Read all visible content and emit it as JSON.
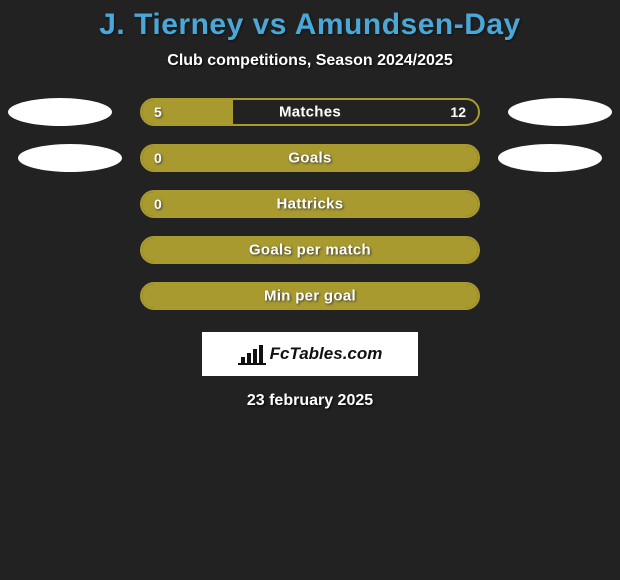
{
  "title": "J. Tierney vs Amundsen-Day",
  "subtitle": "Club competitions, Season 2024/2025",
  "date": "23 february 2025",
  "logo_text": "FcTables.com",
  "colors": {
    "background": "#222222",
    "title": "#4aa8d8",
    "text": "#ffffff",
    "bar_fill": "#a89a2f",
    "bar_border": "#a89a2f",
    "ellipse": "#ffffff",
    "logo_bg": "#ffffff",
    "logo_text": "#111111"
  },
  "bars": [
    {
      "label": "Matches",
      "left_value": "5",
      "right_value": "12",
      "left_fill_pct": 27,
      "right_fill_pct": 0,
      "show_left_ellipse": true,
      "show_right_ellipse": true,
      "ellipse_variant": "row1",
      "full_fill": false
    },
    {
      "label": "Goals",
      "left_value": "0",
      "right_value": "",
      "left_fill_pct": 0,
      "right_fill_pct": 0,
      "show_left_ellipse": true,
      "show_right_ellipse": true,
      "ellipse_variant": "row2",
      "full_fill": true
    },
    {
      "label": "Hattricks",
      "left_value": "0",
      "right_value": "",
      "left_fill_pct": 0,
      "right_fill_pct": 0,
      "show_left_ellipse": false,
      "show_right_ellipse": false,
      "ellipse_variant": "",
      "full_fill": true
    },
    {
      "label": "Goals per match",
      "left_value": "",
      "right_value": "",
      "left_fill_pct": 0,
      "right_fill_pct": 0,
      "show_left_ellipse": false,
      "show_right_ellipse": false,
      "ellipse_variant": "",
      "full_fill": true
    },
    {
      "label": "Min per goal",
      "left_value": "",
      "right_value": "",
      "left_fill_pct": 0,
      "right_fill_pct": 0,
      "show_left_ellipse": false,
      "show_right_ellipse": false,
      "ellipse_variant": "",
      "full_fill": true
    }
  ]
}
